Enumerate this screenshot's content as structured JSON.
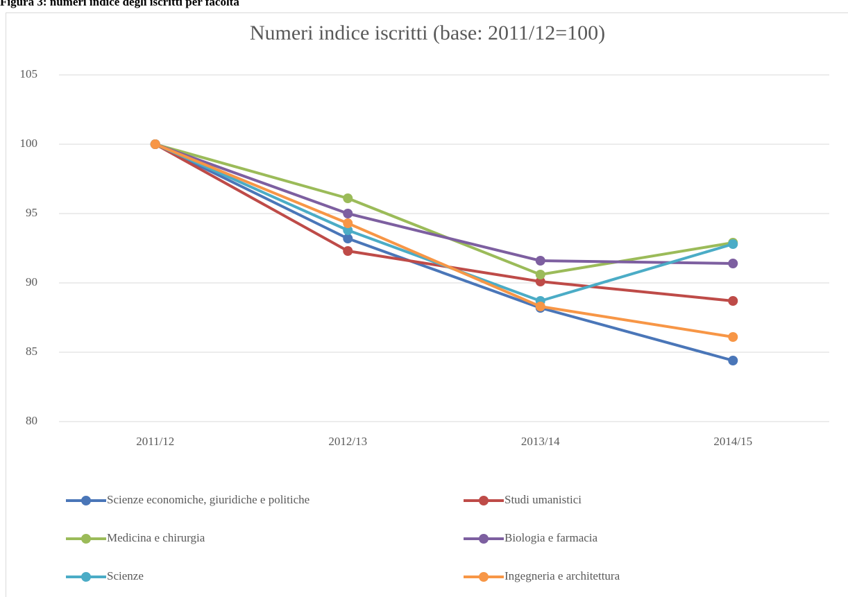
{
  "caption": "Figura 3: numeri indice degli iscritti per facoltà",
  "chart_data": {
    "type": "line",
    "title": "Numeri indice iscritti (base: 2011/12=100)",
    "categories": [
      "2011/12",
      "2012/13",
      "2013/14",
      "2014/15"
    ],
    "ylim": [
      80,
      105
    ],
    "yticks": [
      80,
      85,
      90,
      95,
      100,
      105
    ],
    "grid": true,
    "series": [
      {
        "name": "Scienze economiche, giuridiche e politiche",
        "color": "#4a76b8",
        "values": [
          100,
          93.2,
          88.2,
          84.4
        ]
      },
      {
        "name": "Studi umanistici",
        "color": "#be4b48",
        "values": [
          100,
          92.3,
          90.1,
          88.7
        ]
      },
      {
        "name": "Medicina e chirurgia",
        "color": "#9bbb59",
        "values": [
          100,
          96.1,
          90.6,
          92.9
        ]
      },
      {
        "name": "Biologia e farmacia",
        "color": "#7d5fa0",
        "values": [
          100,
          95.0,
          91.6,
          91.4
        ]
      },
      {
        "name": "Scienze",
        "color": "#4bacc6",
        "values": [
          100,
          93.8,
          88.7,
          92.8
        ]
      },
      {
        "name": "Ingegneria e architettura",
        "color": "#f79646",
        "values": [
          100,
          94.3,
          88.3,
          86.1
        ]
      }
    ]
  }
}
